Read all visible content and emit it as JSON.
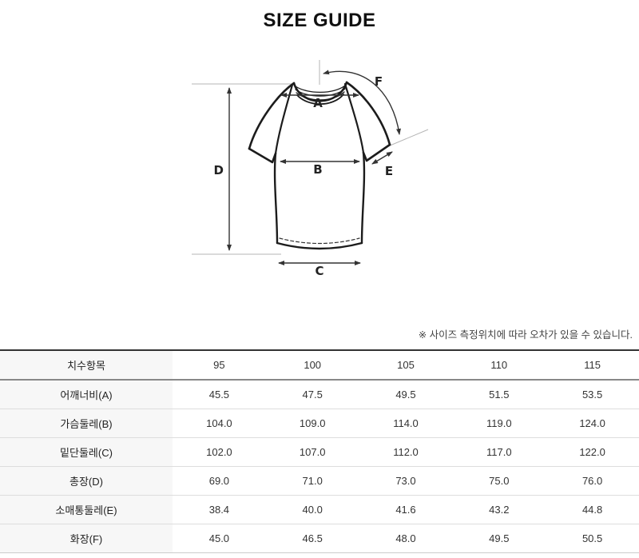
{
  "title": "SIZE GUIDE",
  "note": "※ 사이즈 측정위치에 따라 오차가 있을 수 있습니다.",
  "diagram": {
    "description": "raglan t-shirt measurement diagram",
    "labels": {
      "a": "A",
      "b": "B",
      "c": "C",
      "d": "D",
      "e": "E",
      "f": "F"
    }
  },
  "table": {
    "header": [
      "치수항목",
      "95",
      "100",
      "105",
      "110",
      "115"
    ],
    "rows": [
      {
        "label": "어깨너비(A)",
        "values": [
          "45.5",
          "47.5",
          "49.5",
          "51.5",
          "53.5"
        ]
      },
      {
        "label": "가슴둘레(B)",
        "values": [
          "104.0",
          "109.0",
          "114.0",
          "119.0",
          "124.0"
        ]
      },
      {
        "label": "밑단둘레(C)",
        "values": [
          "102.0",
          "107.0",
          "112.0",
          "117.0",
          "122.0"
        ]
      },
      {
        "label": "총장(D)",
        "values": [
          "69.0",
          "71.0",
          "73.0",
          "75.0",
          "76.0"
        ]
      },
      {
        "label": "소매통둘레(E)",
        "values": [
          "38.4",
          "40.0",
          "41.6",
          "43.2",
          "44.8"
        ]
      },
      {
        "label": "화장(F)",
        "values": [
          "45.0",
          "46.5",
          "48.0",
          "49.5",
          "50.5"
        ]
      }
    ]
  },
  "colors": {
    "outline": "#1c1c1c",
    "arrow": "#333333",
    "guide": "#b5b5b5",
    "table_top_border": "#333333",
    "header_bottom_border": "#888888",
    "row_divider": "#dddddd",
    "label_column_bg": "#f7f7f7",
    "text": "#333333"
  }
}
